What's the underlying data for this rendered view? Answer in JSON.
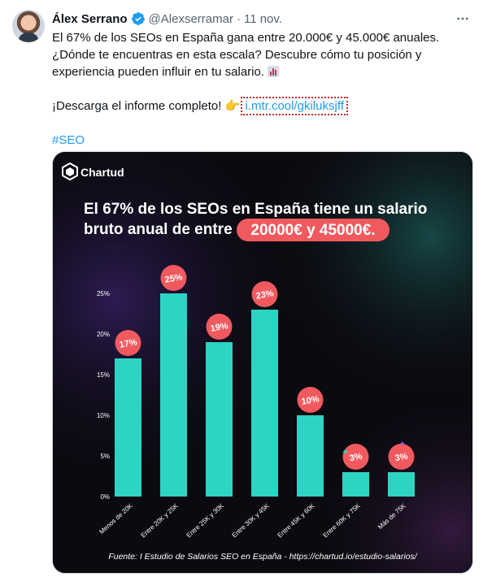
{
  "tweet": {
    "author_name": "Álex Serrano",
    "handle": "@Alexserramar",
    "separator": "·",
    "time": "11 nov.",
    "more_icon": "more-horizontal-icon",
    "line1": "El 67% de los SEOs en España gana entre 20.000€ y 45.000€ anuales.",
    "line2": "¿Dónde te encuentras en esta escala? Descubre cómo tu posición y",
    "line3": "experiencia pueden influir en tu salario.",
    "download_text": "¡Descarga el informe completo!",
    "link_text": "i.mtr.cool/gkiluksjff",
    "hashtag": "#SEO"
  },
  "media": {
    "brand": "Chartud",
    "headline_line1": "El 67% de los SEOs en España tiene un salario",
    "headline_line2_prefix": "bruto anual de entre",
    "headline_highlight": "20000€ y 45000€.",
    "footer": "Fuente: I Estudio de Salarios SEO en España - https://chartud.io/estudio-salarios/",
    "colors": {
      "bar": "#2dd4c4",
      "badge": "#f05a5f",
      "background": "#0b0a10"
    }
  },
  "chart_data": {
    "type": "bar",
    "categories": [
      "Menos de 20K",
      "Entre 20K y 25K",
      "Entre 25K y 30K",
      "Entre 30K y 45K",
      "Entre 45K y 60K",
      "Entre 60K y 75K",
      "Más de 75K"
    ],
    "values": [
      17,
      25,
      19,
      23,
      10,
      3,
      3
    ],
    "labels": [
      "17%",
      "25%",
      "19%",
      "23%",
      "10%",
      "3%",
      "3%"
    ],
    "yticks": [
      "0%",
      "5%",
      "10%",
      "15%",
      "20%",
      "25%"
    ],
    "ytick_values": [
      0,
      5,
      10,
      15,
      20,
      25
    ],
    "ylim": [
      0,
      25
    ],
    "grid": false
  }
}
